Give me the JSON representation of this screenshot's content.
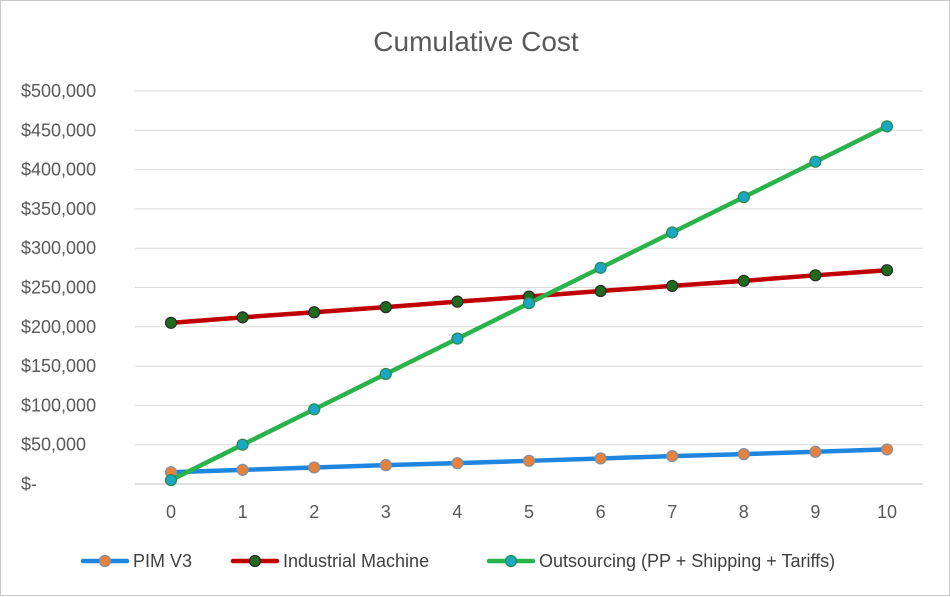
{
  "chart_data": {
    "type": "line",
    "title": "Cumulative Cost",
    "xlabel": "",
    "ylabel": "",
    "x": [
      0,
      1,
      2,
      3,
      4,
      5,
      6,
      7,
      8,
      9,
      10
    ],
    "ylim": [
      0,
      500000
    ],
    "y_ticks": [
      0,
      50000,
      100000,
      150000,
      200000,
      250000,
      300000,
      350000,
      400000,
      450000,
      500000
    ],
    "y_tick_labels": [
      "$-",
      "$50,000",
      "$100,000",
      "$150,000",
      "$200,000",
      "$250,000",
      "$300,000",
      "$350,000",
      "$400,000",
      "$450,000",
      "$500,000"
    ],
    "grid": true,
    "legend_position": "bottom",
    "series": [
      {
        "name": "PIM V3",
        "line_color": "#1f86e0",
        "marker_fill": "#e8823a",
        "marker_stroke": "#7f8fa6",
        "values": [
          15000,
          18000,
          21000,
          24000,
          26500,
          29500,
          32500,
          35500,
          38000,
          41000,
          44000
        ]
      },
      {
        "name": "Industrial Machine",
        "line_color": "#c00000",
        "marker_fill": "#1e6b1e",
        "marker_stroke": "#2a2a2a",
        "values": [
          205000,
          212000,
          218500,
          225000,
          232000,
          238500,
          245500,
          252000,
          258500,
          265500,
          272000
        ]
      },
      {
        "name": "Outsourcing (PP + Shipping + Tariffs)",
        "line_color": "#2ab34a",
        "marker_fill": "#19a7c4",
        "marker_stroke": "#2a8a4a",
        "values": [
          5000,
          50000,
          95000,
          140000,
          185000,
          230000,
          275000,
          320000,
          365000,
          410000,
          455000
        ]
      }
    ]
  }
}
